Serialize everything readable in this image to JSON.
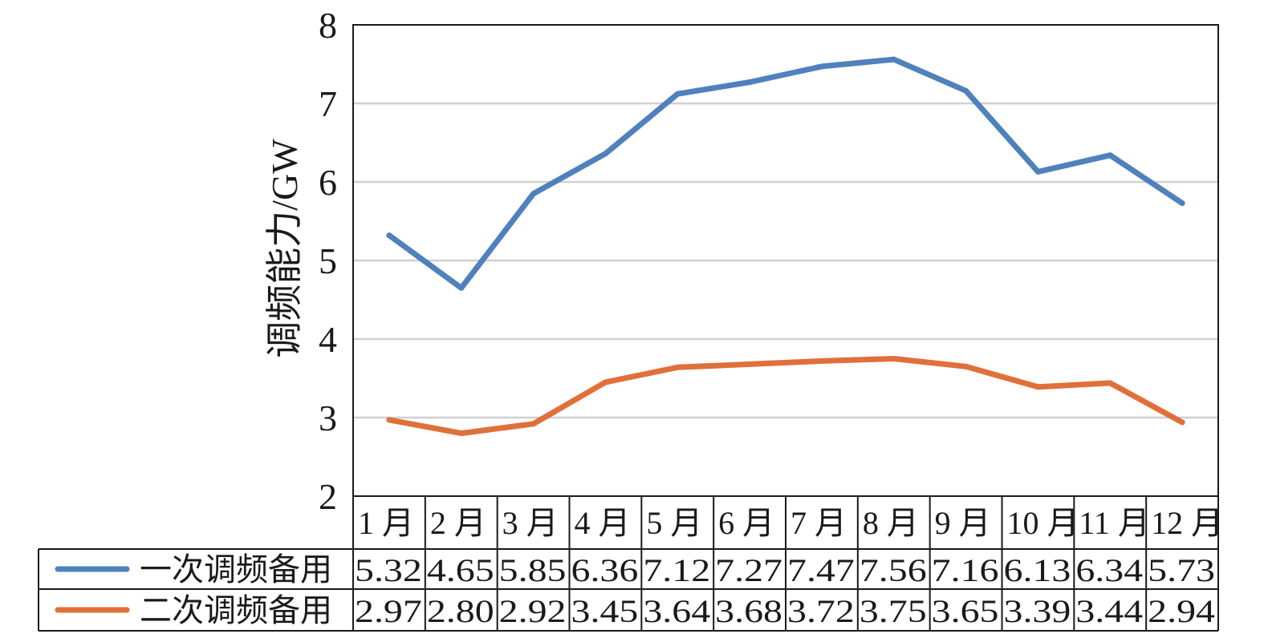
{
  "chart_data": {
    "type": "line",
    "ylabel": "调频能力/GW",
    "ylim": [
      2,
      8
    ],
    "yticks": [
      2,
      3,
      4,
      5,
      6,
      7,
      8
    ],
    "grid": true,
    "categories": [
      "1 月",
      "2 月",
      "3 月",
      "4 月",
      "5 月",
      "6 月",
      "7 月",
      "8 月",
      "9 月",
      "10 月",
      "11 月",
      "12 月"
    ],
    "series": [
      {
        "name": "一次调频备用",
        "color": "#4f81bd",
        "values": [
          5.32,
          4.65,
          5.85,
          6.36,
          7.12,
          7.27,
          7.47,
          7.56,
          7.16,
          6.13,
          6.34,
          5.73
        ],
        "labels": [
          "5.32",
          "4.65",
          "5.85",
          "6.36",
          "7.12",
          "7.27",
          "7.47",
          "7.56",
          "7.16",
          "6.13",
          "6.34",
          "5.73"
        ]
      },
      {
        "name": "二次调频备用",
        "color": "#e0703a",
        "values": [
          2.97,
          2.8,
          2.92,
          3.45,
          3.64,
          3.68,
          3.72,
          3.75,
          3.65,
          3.39,
          3.44,
          2.94
        ],
        "labels": [
          "2.97",
          "2.80",
          "2.92",
          "3.45",
          "3.64",
          "3.68",
          "3.72",
          "3.75",
          "3.65",
          "3.39",
          "3.44",
          "2.94"
        ]
      }
    ],
    "legend": "data-table-left"
  }
}
